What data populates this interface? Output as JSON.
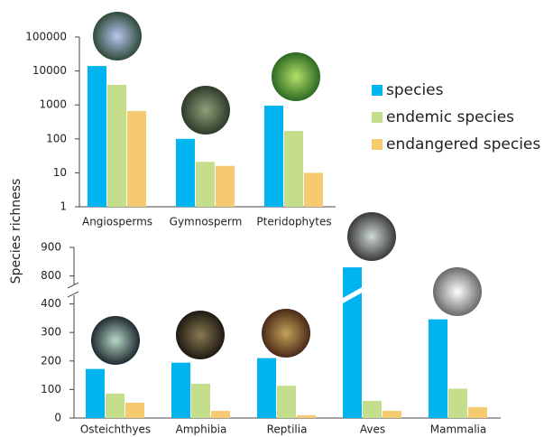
{
  "chart_data": [
    {
      "type": "bar",
      "y_label": "Species richness",
      "log_y": true,
      "categories": [
        "Angiosperms",
        "Gymnosperm",
        "Pteridophytes"
      ],
      "series": [
        {
          "name": "species",
          "color": "#00b4f0",
          "values": [
            14000,
            100,
            950
          ]
        },
        {
          "name": "endemic species",
          "color": "#c4de8c",
          "values": [
            3900,
            21,
            170
          ]
        },
        {
          "name": "endangered species",
          "color": "#f6ca6e",
          "values": [
            660,
            16,
            10
          ]
        }
      ],
      "ylim": [
        1,
        100000
      ],
      "yticks": [
        1,
        10,
        100,
        1000,
        10000,
        100000
      ]
    },
    {
      "type": "bar",
      "axis_break": [
        400,
        800
      ],
      "categories": [
        "Osteichthyes",
        "Amphibia",
        "Reptilia",
        "Aves",
        "Mammalia"
      ],
      "series": [
        {
          "color": "#00b4f0",
          "values": [
            172,
            194,
            210,
            830,
            346
          ]
        },
        {
          "color": "#c4de8c",
          "values": [
            86,
            120,
            113,
            60,
            103
          ]
        },
        {
          "color": "#f6ca6e",
          "values": [
            54,
            25,
            10,
            25,
            38
          ]
        }
      ],
      "ylim": [
        0,
        900
      ],
      "yticks": [
        0,
        100,
        200,
        300,
        400,
        800,
        900
      ]
    }
  ]
}
